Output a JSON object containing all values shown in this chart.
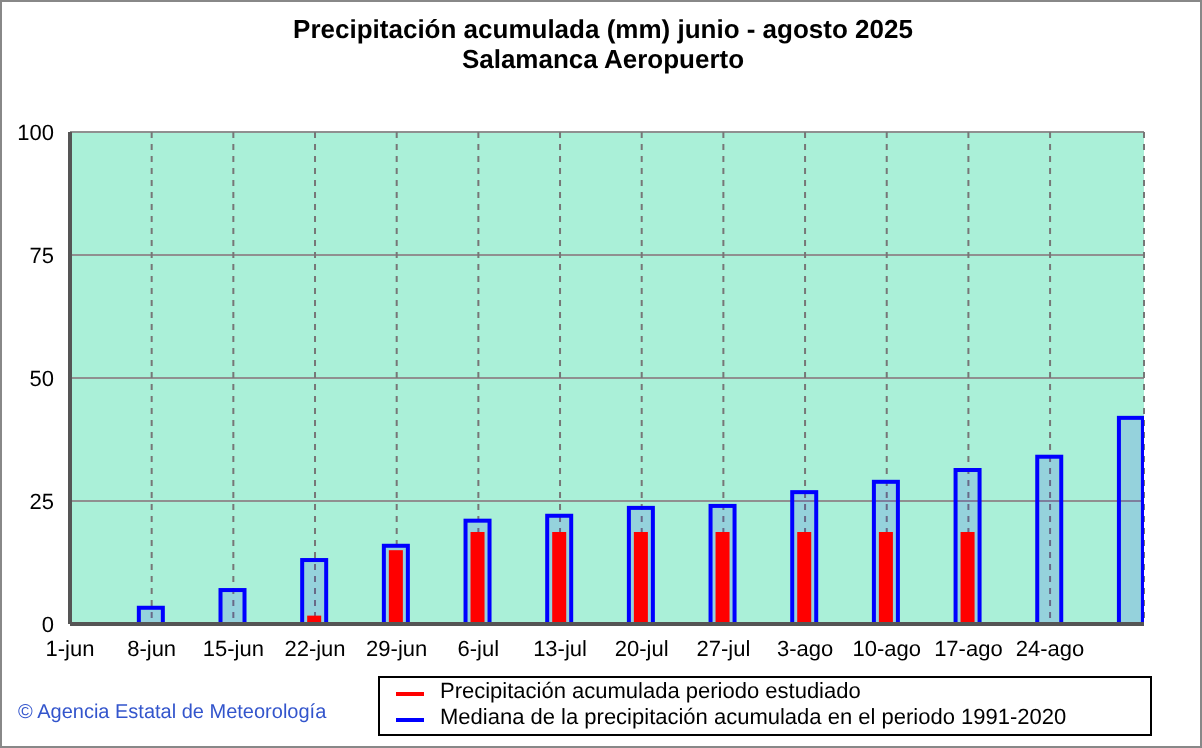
{
  "chart_data": {
    "type": "bar",
    "title": "Precipitación acumulada (mm) junio - agosto 2025",
    "subtitle": "Salamanca Aeropuerto",
    "categories": [
      "1-jun",
      "8-jun",
      "15-jun",
      "22-jun",
      "29-jun",
      "6-jul",
      "13-jul",
      "20-jul",
      "27-jul",
      "3-ago",
      "10-ago",
      "17-ago",
      "24-ago",
      null
    ],
    "series": [
      {
        "name": "Precipitación acumulada periodo estudiado",
        "color": "#ff0000",
        "values": [
          0,
          0,
          0,
          1.7,
          15,
          18.7,
          18.7,
          18.7,
          18.7,
          18.7,
          18.7,
          18.7,
          null,
          null
        ]
      },
      {
        "name": "Mediana de la precipitación acumulada en el periodo 1991-2020",
        "color": "#0000ff",
        "values": [
          0,
          3.3,
          6.9,
          13,
          15.9,
          21,
          22,
          23.6,
          24,
          26.8,
          28.9,
          31.3,
          34,
          41.9
        ]
      }
    ],
    "ylim": [
      0,
      100
    ],
    "yticks": [
      0,
      25,
      50,
      75,
      100
    ],
    "grid": true,
    "legend": "bottom",
    "annotations": [
      "© Agencia Estatal de Meteorología"
    ]
  }
}
